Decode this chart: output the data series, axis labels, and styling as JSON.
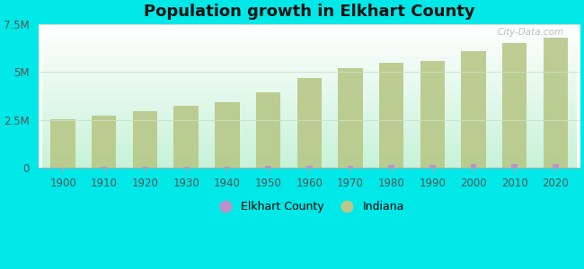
{
  "title": "Population growth in Elkhart County",
  "years": [
    1900,
    1910,
    1920,
    1930,
    1940,
    1950,
    1960,
    1970,
    1980,
    1990,
    2000,
    2010,
    2020
  ],
  "indiana_pop": [
    2516462,
    2700876,
    2930390,
    3238503,
    3427796,
    3934224,
    4662498,
    5193669,
    5490224,
    5544159,
    6080485,
    6483802,
    6785528
  ],
  "elkhart_pop": [
    35646,
    40711,
    53789,
    66689,
    76225,
    84523,
    106790,
    126529,
    137330,
    156198,
    182791,
    197559,
    206341
  ],
  "indiana_color": "#b8c888",
  "elkhart_color": "#c090c8",
  "background_outer": "#00e8e8",
  "ylim": [
    0,
    7500000
  ],
  "yticks": [
    0,
    2500000,
    5000000,
    7500000
  ],
  "ytick_labels": [
    "0",
    "2.5M",
    "5M",
    "7.5M"
  ],
  "bar_width": 0.6,
  "watermark": "City-Data.com"
}
